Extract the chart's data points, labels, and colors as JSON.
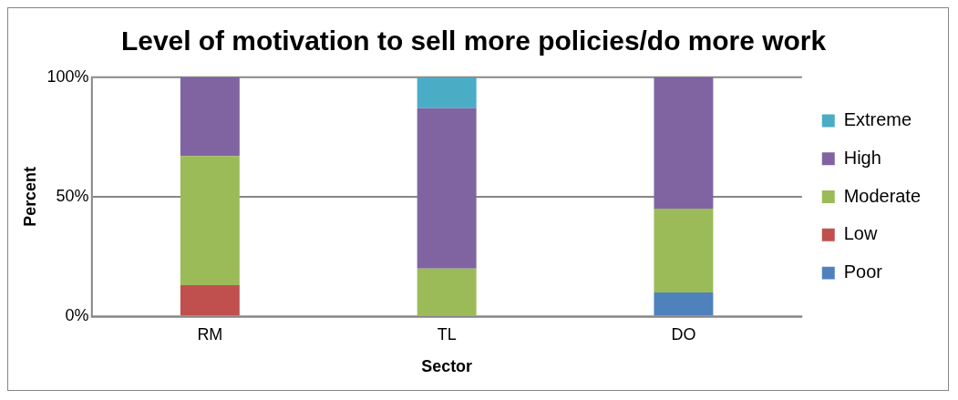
{
  "chart_data": {
    "type": "bar",
    "title": "Level of motivation to sell more policies/do more work",
    "xlabel": "Sector",
    "ylabel": "Percent",
    "categories": [
      "RM",
      "TL",
      "DO"
    ],
    "stacked": true,
    "series": [
      {
        "name": "Poor",
        "color": "#4f81bd",
        "values": [
          0,
          0,
          10
        ]
      },
      {
        "name": "Low",
        "color": "#c0504d",
        "values": [
          13,
          0,
          0
        ]
      },
      {
        "name": "Moderate",
        "color": "#9bbb59",
        "values": [
          54,
          20,
          35
        ]
      },
      {
        "name": "High",
        "color": "#8064a2",
        "values": [
          33,
          67,
          55
        ]
      },
      {
        "name": "Extreme",
        "color": "#4bacc6",
        "values": [
          0,
          13,
          0
        ]
      }
    ],
    "ylim": [
      0,
      100
    ],
    "yticks": [
      {
        "value": 0,
        "label": "0%"
      },
      {
        "value": 50,
        "label": "50%"
      },
      {
        "value": 100,
        "label": "100%"
      }
    ],
    "grid": "y",
    "legend": "right"
  }
}
